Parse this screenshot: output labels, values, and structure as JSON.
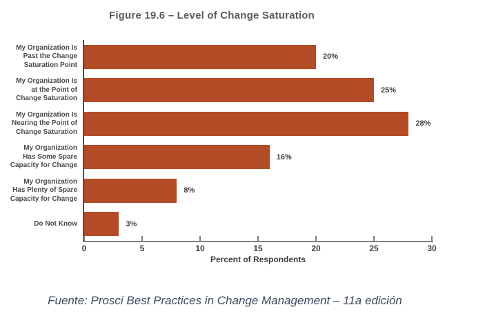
{
  "figure": {
    "title": "Figure 19.6 – Level of Change Saturation",
    "source_note": "Fuente: Prosci Best Practices in Change Management – 11a edición"
  },
  "colors": {
    "bar": "#B34B26",
    "title_text": "#575C61",
    "source_text": "#3D4A5E",
    "x_axis_line": "#808080",
    "y_axis_line": "#4D4D4D",
    "tick_text": "#3F3F3F",
    "category_text": "#4A4A4A"
  },
  "chart_data": {
    "type": "bar",
    "orientation": "horizontal",
    "title": "Figure 19.6 – Level of Change Saturation",
    "categories": [
      "My Organization Is\nPast the Change\nSaturation Point",
      "My Organization Is\nat the Point of\nChange Saturation",
      "My Organization Is\nNearing the Point of\nChange Saturation",
      "My Organization\nHas Some Spare\nCapacity for Change",
      "My Organization\nHas Plenty of Spare\nCapacity for Change",
      "Do Not Know"
    ],
    "values": [
      20,
      25,
      28,
      16,
      8,
      3
    ],
    "value_labels": [
      "20%",
      "25%",
      "28%",
      "16%",
      "8%",
      "3%"
    ],
    "xlabel": "Percent of Respondents",
    "xlim": [
      0,
      30
    ],
    "xticks": [
      0,
      5,
      10,
      15,
      20,
      25,
      30
    ],
    "grid": false,
    "legend": false,
    "bar_color": "#B34B26"
  }
}
